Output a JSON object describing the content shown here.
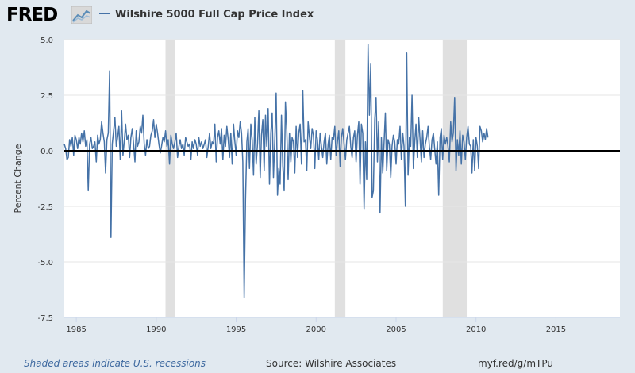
{
  "header": {
    "logo_text": "FRED",
    "logo_icon": "line-chart-icon",
    "series_title": "Wilshire 5000 Full Cap Price Index"
  },
  "footer": {
    "recession_note": "Shaded areas indicate U.S. recessions",
    "source": "Source: Wilshire Associates",
    "url": "myf.red/g/mTPu"
  },
  "colors": {
    "line": "#4572a7",
    "background": "#e1e9f0",
    "plot_background": "#ffffff",
    "recession": "#e0e0e0",
    "zero_line": "#000000"
  },
  "chart_data": {
    "type": "line",
    "title": "",
    "xlabel": "",
    "ylabel": "Percent Change",
    "xlim": [
      1984.25,
      2019.0
    ],
    "ylim": [
      -7.5,
      5.0
    ],
    "x_ticks": [
      "1985",
      "1990",
      "1995",
      "2000",
      "2005",
      "2010",
      "2015"
    ],
    "y_ticks": [
      "5.0",
      "2.5",
      "0.0",
      "-2.5",
      "-5.0",
      "-7.5"
    ],
    "grid": "horizontal",
    "recessions": [
      [
        1990.58,
        1991.17
      ],
      [
        2001.17,
        2001.83
      ],
      [
        2007.92,
        2009.42
      ]
    ],
    "series": [
      {
        "start_year": 1984.25,
        "step_years": 0.08333,
        "values": [
          0.3,
          0.1,
          -0.4,
          -0.3,
          0.5,
          0.2,
          0.6,
          -0.2,
          0.7,
          0.5,
          0.1,
          0.6,
          0.3,
          0.8,
          0.4,
          0.9,
          0.2,
          0.5,
          -1.8,
          0.3,
          0.6,
          0.1,
          0.2,
          0.4,
          -0.5,
          0.7,
          0.3,
          0.5,
          1.3,
          0.8,
          0.4,
          -1.0,
          0.5,
          0.8,
          3.6,
          -3.9,
          0.3,
          0.9,
          1.5,
          0.2,
          0.6,
          1.1,
          -0.4,
          1.8,
          -0.2,
          0.4,
          1.2,
          0.5,
          0.7,
          -0.3,
          0.6,
          1.0,
          0.3,
          -0.5,
          0.9,
          0.2,
          0.4,
          1.1,
          0.8,
          1.6,
          0.3,
          -0.2,
          0.5,
          0.1,
          0.2,
          0.7,
          0.9,
          1.4,
          0.6,
          1.2,
          0.8,
          0.3,
          -0.1,
          0.2,
          0.6,
          0.4,
          0.9,
          0.2,
          0.5,
          -0.6,
          0.7,
          0.3,
          0.1,
          0.4,
          0.8,
          -0.3,
          0.2,
          0.5,
          0.1,
          0.3,
          -0.2,
          0.6,
          0.4,
          0.2,
          0.3,
          -0.4,
          0.4,
          0.1,
          0.5,
          0.3,
          -0.2,
          0.6,
          0.2,
          0.4,
          0.1,
          0.3,
          0.5,
          -0.3,
          0.2,
          0.8,
          0.1,
          0.4,
          0.3,
          1.2,
          -0.5,
          0.6,
          0.9,
          0.3,
          1.0,
          -0.4,
          0.7,
          0.2,
          1.1,
          0.5,
          -0.3,
          0.8,
          -0.6,
          1.2,
          0.4,
          -0.2,
          0.9,
          0.6,
          1.3,
          0.8,
          -0.5,
          -6.6,
          -2.2,
          0.4,
          1.0,
          -0.8,
          1.2,
          0.5,
          -1.1,
          1.5,
          -0.6,
          0.3,
          1.8,
          -1.2,
          0.7,
          1.4,
          -0.9,
          1.6,
          0.2,
          1.9,
          -1.5,
          0.8,
          1.7,
          -1.2,
          0.5,
          2.6,
          -2.0,
          -0.8,
          -1.5,
          1.6,
          -0.7,
          -1.8,
          2.2,
          0.9,
          -1.3,
          0.8,
          -0.5,
          0.6,
          0.4,
          -1.0,
          1.1,
          -0.3,
          0.8,
          1.2,
          -0.6,
          2.7,
          0.4,
          0.5,
          -0.9,
          1.3,
          0.6,
          0.1,
          1.0,
          0.7,
          -0.8,
          0.9,
          0.5,
          -0.4,
          0.8,
          0.2,
          -0.3,
          0.4,
          0.8,
          -0.6,
          0.3,
          0.7,
          -0.4,
          0.6,
          0.5,
          1.1,
          -0.2,
          0.4,
          0.9,
          -0.7,
          0.6,
          1.0,
          0.3,
          -0.4,
          0.5,
          0.8,
          1.1,
          0.2,
          -0.3,
          0.6,
          0.9,
          -0.5,
          0.7,
          1.3,
          -1.5,
          1.2,
          0.8,
          -2.6,
          0.4,
          -1.3,
          4.8,
          1.6,
          3.9,
          -2.1,
          -1.8,
          1.4,
          2.4,
          -0.5,
          1.3,
          -2.8,
          0.6,
          -1.0,
          0.4,
          1.7,
          -0.9,
          0.5,
          0.3,
          -1.2,
          0.2,
          0.7,
          0.4,
          -0.6,
          0.5,
          0.3,
          1.1,
          -0.4,
          0.8,
          0.2,
          -2.5,
          4.4,
          -1.1,
          0.6,
          0.2,
          2.5,
          -0.8,
          0.4,
          1.2,
          -0.3,
          1.5,
          0.5,
          -0.5,
          0.9,
          -0.3,
          0.3,
          0.6,
          1.1,
          0.2,
          -0.4,
          0.5,
          0.8,
          0.1,
          -0.6,
          0.4,
          -2.0,
          0.6,
          1.0,
          -0.4,
          0.7,
          0.3,
          0.6,
          0.2,
          -0.5,
          1.3,
          0.4,
          0.8,
          2.4,
          -0.9,
          0.5,
          -0.2,
          0.9,
          -0.6,
          0.7,
          0.4,
          -0.4,
          0.6,
          1.1,
          0.3,
          0.2,
          -1.0,
          0.5,
          -0.9,
          0.6,
          0.2,
          -0.8,
          1.1,
          0.9,
          0.4,
          0.8,
          0.5,
          1.0,
          0.6
        ]
      }
    ]
  }
}
